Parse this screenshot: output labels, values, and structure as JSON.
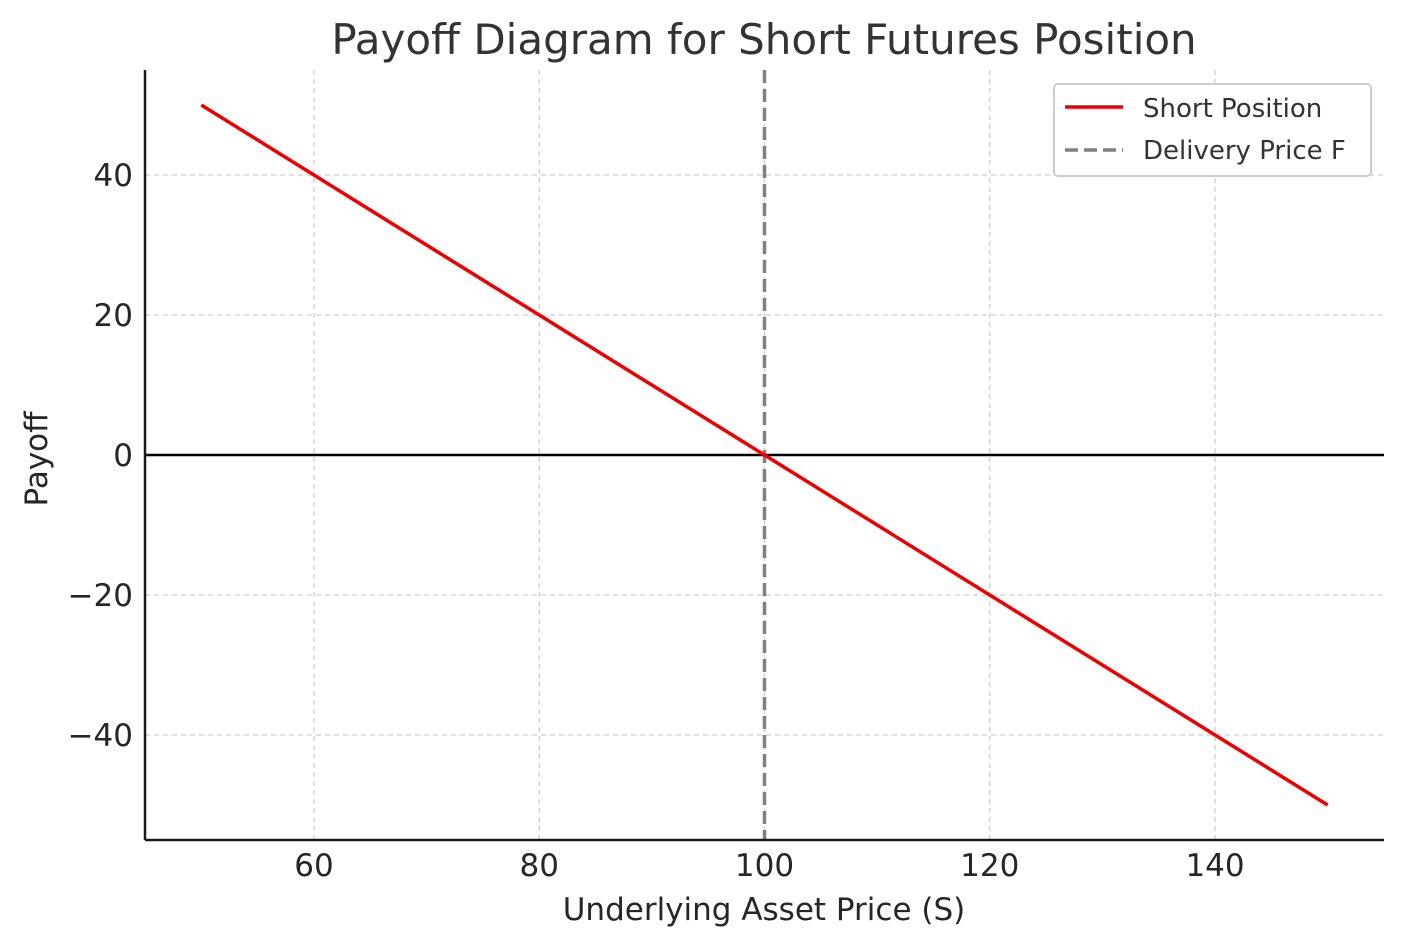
{
  "chart_data": {
    "type": "line",
    "title": "Payoff Diagram for Short Futures Position",
    "xlabel": "Underlying Asset Price (S)",
    "ylabel": "Payoff",
    "xlim": [
      45,
      155
    ],
    "ylim": [
      -55,
      55
    ],
    "x_ticks": [
      60,
      80,
      100,
      120,
      140
    ],
    "y_ticks": [
      40,
      20,
      0,
      -20,
      -40
    ],
    "x_tick_labels": [
      "60",
      "80",
      "100",
      "120",
      "140"
    ],
    "y_tick_labels": [
      "40",
      "20",
      "0",
      "−20",
      "−40"
    ],
    "grid": true,
    "legend_position": "top-right",
    "series": [
      {
        "name": "Short Position",
        "color": "#ee0000",
        "style": "solid",
        "x": [
          50,
          150
        ],
        "y": [
          50,
          -50
        ]
      }
    ],
    "reference_lines": [
      {
        "name": "Delivery Price F",
        "orientation": "vertical",
        "x": 100,
        "color": "#808080",
        "style": "dashed"
      },
      {
        "orientation": "horizontal",
        "y": 0,
        "color": "#000000",
        "style": "solid"
      }
    ],
    "legend": [
      {
        "label": "Short Position",
        "color": "#ee0000",
        "style": "solid"
      },
      {
        "label": "Delivery Price F",
        "color": "#808080",
        "style": "dashed"
      }
    ]
  }
}
